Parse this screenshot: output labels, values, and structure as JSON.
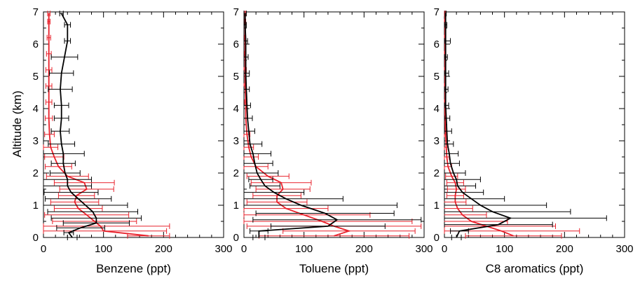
{
  "figure": {
    "ylabel": "Altitude (km)",
    "colors": {
      "black_series": "#000000",
      "red_series": "#e8202a",
      "axis": "#000000",
      "tick_label": "#000000"
    }
  },
  "chart_data": [
    {
      "type": "line",
      "xlabel": "Benzene (ppt)",
      "ylabel": "Altitude (km)",
      "xlim": [
        0,
        300
      ],
      "ylim": [
        0,
        7
      ],
      "xticks": [
        "0",
        "100",
        "200",
        "300"
      ],
      "yticks": [
        "0",
        "1",
        "2",
        "3",
        "4",
        "5",
        "6",
        "7"
      ],
      "grid": false,
      "series": [
        {
          "color": "#000000",
          "points": [
            {
              "alt": 0.0,
              "x": 48,
              "err": 8
            },
            {
              "alt": 0.15,
              "x": 42,
              "err": 8
            },
            {
              "alt": 0.3,
              "x": 62,
              "err": 40
            },
            {
              "alt": 0.45,
              "x": 88,
              "err": 55
            },
            {
              "alt": 0.6,
              "x": 88,
              "err": 75
            },
            {
              "alt": 0.8,
              "x": 82,
              "err": 75
            },
            {
              "alt": 1.0,
              "x": 70,
              "err": 70
            },
            {
              "alt": 1.2,
              "x": 58,
              "err": 55
            },
            {
              "alt": 1.4,
              "x": 46,
              "err": 45
            },
            {
              "alt": 1.6,
              "x": 40,
              "err": 40
            },
            {
              "alt": 1.8,
              "x": 40,
              "err": 40
            },
            {
              "alt": 2.0,
              "x": 36,
              "err": 25
            },
            {
              "alt": 2.3,
              "x": 33,
              "err": 20
            },
            {
              "alt": 2.6,
              "x": 33,
              "err": 35
            },
            {
              "alt": 2.9,
              "x": 30,
              "err": 22
            },
            {
              "alt": 3.3,
              "x": 28,
              "err": 15
            },
            {
              "alt": 3.7,
              "x": 30,
              "err": 12
            },
            {
              "alt": 4.1,
              "x": 30,
              "err": 12
            },
            {
              "alt": 4.6,
              "x": 28,
              "err": 20
            },
            {
              "alt": 5.1,
              "x": 30,
              "err": 20
            },
            {
              "alt": 5.6,
              "x": 35,
              "err": 22
            },
            {
              "alt": 6.1,
              "x": 40,
              "err": 5
            },
            {
              "alt": 6.6,
              "x": 40,
              "err": 5
            },
            {
              "alt": 6.95,
              "x": 30,
              "err": 3
            }
          ]
        },
        {
          "color": "#e8202a",
          "points": [
            {
              "alt": 0.05,
              "x": 175,
              "err": 35
            },
            {
              "alt": 0.2,
              "x": 100,
              "err": 105
            },
            {
              "alt": 0.35,
              "x": 95,
              "err": 115
            },
            {
              "alt": 0.5,
              "x": 85,
              "err": 70
            },
            {
              "alt": 0.7,
              "x": 72,
              "err": 70
            },
            {
              "alt": 0.9,
              "x": 58,
              "err": 40
            },
            {
              "alt": 1.1,
              "x": 52,
              "err": 40
            },
            {
              "alt": 1.3,
              "x": 55,
              "err": 30
            },
            {
              "alt": 1.5,
              "x": 72,
              "err": 45
            },
            {
              "alt": 1.7,
              "x": 68,
              "err": 50
            },
            {
              "alt": 1.9,
              "x": 40,
              "err": 35
            },
            {
              "alt": 2.2,
              "x": 25,
              "err": 22
            },
            {
              "alt": 2.5,
              "x": 18,
              "err": 16
            },
            {
              "alt": 2.8,
              "x": 12,
              "err": 12
            },
            {
              "alt": 3.2,
              "x": 10,
              "err": 8
            },
            {
              "alt": 3.7,
              "x": 9,
              "err": 6
            },
            {
              "alt": 4.2,
              "x": 9,
              "err": 5
            },
            {
              "alt": 4.7,
              "x": 9,
              "err": 5
            },
            {
              "alt": 5.2,
              "x": 9,
              "err": 5
            },
            {
              "alt": 5.7,
              "x": 9,
              "err": 4
            },
            {
              "alt": 6.2,
              "x": 9,
              "err": 3
            },
            {
              "alt": 6.7,
              "x": 9,
              "err": 2
            },
            {
              "alt": 6.95,
              "x": 9,
              "err": 2
            }
          ]
        }
      ]
    },
    {
      "type": "line",
      "xlabel": "Toluene (ppt)",
      "ylabel": "",
      "xlim": [
        0,
        300
      ],
      "ylim": [
        0,
        7
      ],
      "xticks": [
        "0",
        "100",
        "200",
        "300"
      ],
      "yticks": [
        "0",
        "1",
        "2",
        "3",
        "4",
        "5",
        "6",
        "7"
      ],
      "grid": false,
      "series": [
        {
          "color": "#000000",
          "points": [
            {
              "alt": 0.0,
              "x": 25,
              "err": 10
            },
            {
              "alt": 0.2,
              "x": 25,
              "err": 15
            },
            {
              "alt": 0.35,
              "x": 140,
              "err": 95
            },
            {
              "alt": 0.55,
              "x": 155,
              "err": 140
            },
            {
              "alt": 0.75,
              "x": 135,
              "err": 115
            },
            {
              "alt": 1.0,
              "x": 95,
              "err": 160
            },
            {
              "alt": 1.2,
              "x": 70,
              "err": 95
            },
            {
              "alt": 1.4,
              "x": 50,
              "err": 50
            },
            {
              "alt": 1.6,
              "x": 35,
              "err": 25
            },
            {
              "alt": 1.8,
              "x": 28,
              "err": 20
            },
            {
              "alt": 2.0,
              "x": 22,
              "err": 35
            },
            {
              "alt": 2.3,
              "x": 18,
              "err": 30
            },
            {
              "alt": 2.6,
              "x": 15,
              "err": 30
            },
            {
              "alt": 2.9,
              "x": 10,
              "err": 20
            },
            {
              "alt": 3.3,
              "x": 8,
              "err": 10
            },
            {
              "alt": 3.7,
              "x": 6,
              "err": 8
            },
            {
              "alt": 4.1,
              "x": 5,
              "err": 6
            },
            {
              "alt": 4.6,
              "x": 4,
              "err": 5
            },
            {
              "alt": 5.1,
              "x": 3,
              "err": 6
            },
            {
              "alt": 5.6,
              "x": 3,
              "err": 4
            },
            {
              "alt": 6.1,
              "x": 3,
              "err": 3
            },
            {
              "alt": 6.6,
              "x": 2,
              "err": 2
            },
            {
              "alt": 6.95,
              "x": 2,
              "err": 2
            }
          ]
        },
        {
          "color": "#e8202a",
          "points": [
            {
              "alt": 0.05,
              "x": 150,
              "err": 125
            },
            {
              "alt": 0.2,
              "x": 175,
              "err": 110
            },
            {
              "alt": 0.35,
              "x": 150,
              "err": 145
            },
            {
              "alt": 0.5,
              "x": 130,
              "err": 150
            },
            {
              "alt": 0.7,
              "x": 100,
              "err": 110
            },
            {
              "alt": 0.9,
              "x": 70,
              "err": 70
            },
            {
              "alt": 1.1,
              "x": 55,
              "err": 50
            },
            {
              "alt": 1.3,
              "x": 55,
              "err": 40
            },
            {
              "alt": 1.5,
              "x": 65,
              "err": 45
            },
            {
              "alt": 1.7,
              "x": 62,
              "err": 50
            },
            {
              "alt": 1.9,
              "x": 40,
              "err": 35
            },
            {
              "alt": 2.2,
              "x": 20,
              "err": 20
            },
            {
              "alt": 2.5,
              "x": 12,
              "err": 12
            },
            {
              "alt": 2.8,
              "x": 8,
              "err": 8
            },
            {
              "alt": 3.2,
              "x": 5,
              "err": 5
            },
            {
              "alt": 3.7,
              "x": 3,
              "err": 3
            },
            {
              "alt": 4.2,
              "x": 3,
              "err": 2
            },
            {
              "alt": 4.7,
              "x": 2,
              "err": 2
            },
            {
              "alt": 5.2,
              "x": 2,
              "err": 2
            },
            {
              "alt": 5.7,
              "x": 2,
              "err": 1
            },
            {
              "alt": 6.2,
              "x": 2,
              "err": 1
            },
            {
              "alt": 6.7,
              "x": 2,
              "err": 1
            },
            {
              "alt": 6.95,
              "x": 2,
              "err": 1
            }
          ]
        }
      ]
    },
    {
      "type": "line",
      "xlabel": "C8 aromatics (ppt)",
      "ylabel": "",
      "xlim": [
        0,
        300
      ],
      "ylim": [
        0,
        7
      ],
      "xticks": [
        "0",
        "100",
        "200",
        "300"
      ],
      "yticks": [
        "0",
        "1",
        "2",
        "3",
        "4",
        "5",
        "6",
        "7"
      ],
      "grid": false,
      "series": [
        {
          "color": "#000000",
          "points": [
            {
              "alt": 0.0,
              "x": 20,
              "err": 8
            },
            {
              "alt": 0.2,
              "x": 25,
              "err": 15
            },
            {
              "alt": 0.4,
              "x": 90,
              "err": 90
            },
            {
              "alt": 0.6,
              "x": 110,
              "err": 160
            },
            {
              "alt": 0.8,
              "x": 80,
              "err": 130
            },
            {
              "alt": 1.0,
              "x": 60,
              "err": 110
            },
            {
              "alt": 1.2,
              "x": 45,
              "err": 55
            },
            {
              "alt": 1.4,
              "x": 30,
              "err": 35
            },
            {
              "alt": 1.6,
              "x": 22,
              "err": 30
            },
            {
              "alt": 1.8,
              "x": 20,
              "err": 40
            },
            {
              "alt": 2.0,
              "x": 15,
              "err": 20
            },
            {
              "alt": 2.3,
              "x": 10,
              "err": 15
            },
            {
              "alt": 2.6,
              "x": 8,
              "err": 15
            },
            {
              "alt": 2.9,
              "x": 5,
              "err": 10
            },
            {
              "alt": 3.3,
              "x": 4,
              "err": 8
            },
            {
              "alt": 3.7,
              "x": 3,
              "err": 6
            },
            {
              "alt": 4.1,
              "x": 2,
              "err": 5
            },
            {
              "alt": 4.6,
              "x": 2,
              "err": 4
            },
            {
              "alt": 5.1,
              "x": 2,
              "err": 5
            },
            {
              "alt": 5.6,
              "x": 2,
              "err": 3
            },
            {
              "alt": 6.1,
              "x": 2,
              "err": 8
            },
            {
              "alt": 6.6,
              "x": 2,
              "err": 2
            },
            {
              "alt": 6.95,
              "x": 2,
              "err": 1
            }
          ]
        },
        {
          "color": "#e8202a",
          "points": [
            {
              "alt": 0.05,
              "x": 115,
              "err": 80
            },
            {
              "alt": 0.2,
              "x": 95,
              "err": 130
            },
            {
              "alt": 0.35,
              "x": 70,
              "err": 115
            },
            {
              "alt": 0.5,
              "x": 45,
              "err": 60
            },
            {
              "alt": 0.7,
              "x": 30,
              "err": 40
            },
            {
              "alt": 0.9,
              "x": 22,
              "err": 25
            },
            {
              "alt": 1.1,
              "x": 18,
              "err": 18
            },
            {
              "alt": 1.3,
              "x": 18,
              "err": 14
            },
            {
              "alt": 1.5,
              "x": 20,
              "err": 15
            },
            {
              "alt": 1.7,
              "x": 18,
              "err": 14
            },
            {
              "alt": 1.9,
              "x": 12,
              "err": 10
            },
            {
              "alt": 2.2,
              "x": 6,
              "err": 6
            },
            {
              "alt": 2.5,
              "x": 4,
              "err": 4
            },
            {
              "alt": 2.8,
              "x": 3,
              "err": 3
            },
            {
              "alt": 3.2,
              "x": 2,
              "err": 2
            },
            {
              "alt": 3.7,
              "x": 1,
              "err": 1
            },
            {
              "alt": 4.2,
              "x": 1,
              "err": 1
            },
            {
              "alt": 4.7,
              "x": 1,
              "err": 1
            },
            {
              "alt": 5.2,
              "x": 1,
              "err": 1
            },
            {
              "alt": 5.7,
              "x": 1,
              "err": 1
            },
            {
              "alt": 6.2,
              "x": 1,
              "err": 1
            },
            {
              "alt": 6.7,
              "x": 1,
              "err": 1
            },
            {
              "alt": 6.95,
              "x": 1,
              "err": 1
            }
          ]
        }
      ]
    }
  ]
}
